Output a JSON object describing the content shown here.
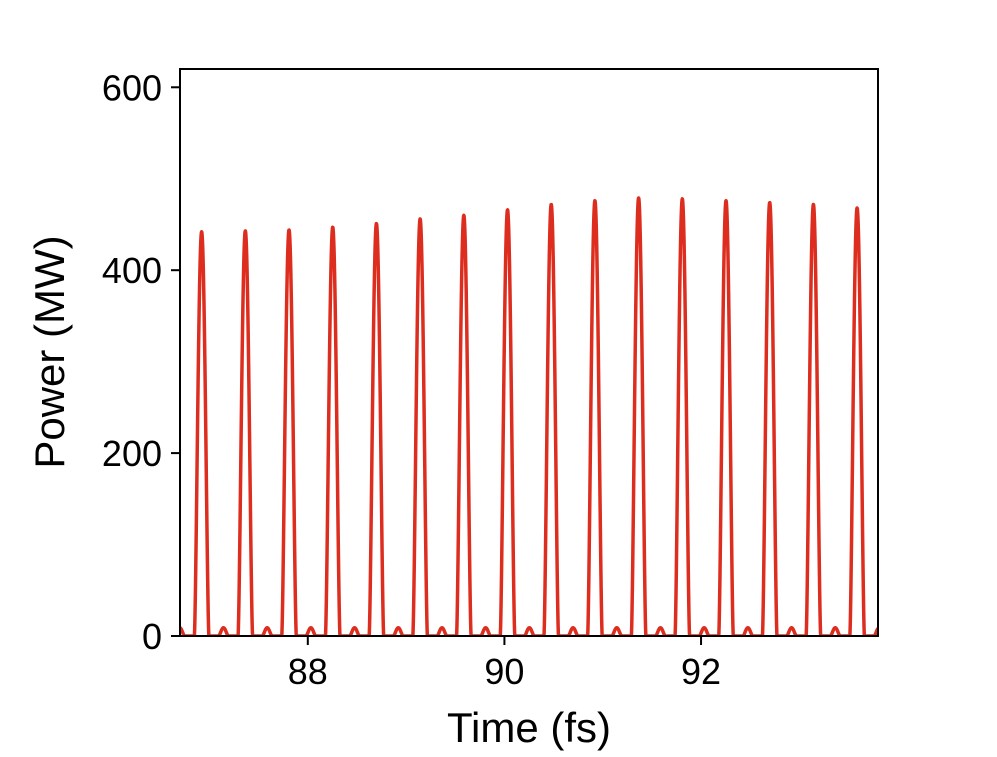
{
  "chart_data": {
    "type": "line",
    "title": "",
    "xlabel": "Time (fs)",
    "ylabel": "Power (MW)",
    "xlim": [
      86.7,
      93.8
    ],
    "ylim": [
      0,
      620
    ],
    "xticks": [
      88,
      90,
      92
    ],
    "xtick_labels": [
      "88",
      "90",
      "92"
    ],
    "yticks": [
      0,
      200,
      400,
      600
    ],
    "ytick_labels": [
      "0",
      "200",
      "400",
      "600"
    ],
    "grid": false,
    "legend": "none",
    "colors": {
      "series": "#dc2d1e",
      "axes": "#000000",
      "background": "#ffffff"
    },
    "series": [
      {
        "color": "#dc2d1e",
        "period_fs": 0.4445,
        "main_peaks": {
          "x": [
            86.92,
            87.36,
            87.81,
            88.25,
            88.7,
            89.14,
            89.59,
            90.03,
            90.48,
            90.92,
            91.36,
            91.81,
            92.25,
            92.7,
            93.14,
            93.59
          ],
          "y": [
            442,
            443,
            444,
            447,
            451,
            456,
            460,
            466,
            472,
            476,
            479,
            478,
            476,
            474,
            472,
            468
          ]
        },
        "secondary_peak_height": 9
      }
    ]
  }
}
